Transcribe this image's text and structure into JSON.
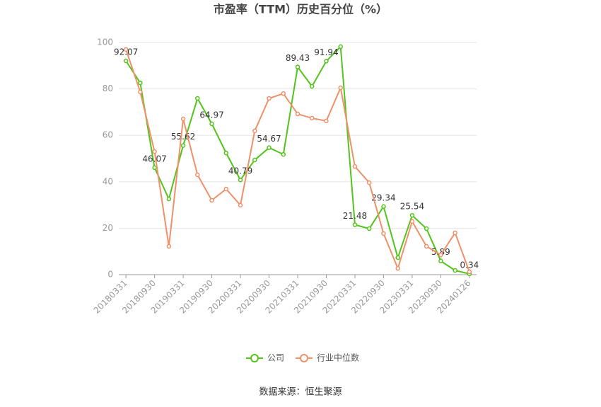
{
  "chart_data": {
    "type": "line",
    "title": "市盈率（TTM）历史百分位（%）",
    "source": "数据来源：恒生聚源",
    "categories": [
      "20180331",
      null,
      "20180930",
      null,
      "20190331",
      null,
      "20190930",
      null,
      "20200331",
      null,
      "20200930",
      null,
      "20210331",
      null,
      "20210930",
      null,
      "20220331",
      null,
      "20220930",
      null,
      "20230331",
      null,
      "20230930",
      null,
      "20240126"
    ],
    "series": [
      {
        "name": "公司",
        "color": "#52c41a",
        "values": [
          92.07,
          82.6,
          46.07,
          32.6,
          55.62,
          75.9,
          64.97,
          52.4,
          40.79,
          49.4,
          54.67,
          51.8,
          89.43,
          81.1,
          91.94,
          98.2,
          21.48,
          19.8,
          29.34,
          7.3,
          25.54,
          19.8,
          5.89,
          1.8,
          0.34
        ],
        "value_labels": [
          "92.07",
          null,
          "46.07",
          null,
          "55.62",
          null,
          "64.97",
          null,
          "40.79",
          null,
          "54.67",
          null,
          "89.43",
          null,
          "91.94",
          null,
          "21.48",
          null,
          "29.34",
          null,
          "25.54",
          null,
          "5.89",
          null,
          "0.34"
        ]
      },
      {
        "name": "行业中位数",
        "color": "#f0906a",
        "values": [
          97,
          78.7,
          53,
          12.2,
          67.1,
          43,
          32,
          36.9,
          29.9,
          61.9,
          75.9,
          78,
          69.2,
          67.4,
          66.2,
          80.5,
          46.6,
          39.6,
          17.7,
          2.7,
          22.9,
          12.2,
          8.5,
          18,
          1.2
        ]
      }
    ],
    "ylim": [
      0,
      100
    ],
    "yticks": [
      0,
      20,
      40,
      60,
      80,
      100
    ],
    "grid": true
  }
}
